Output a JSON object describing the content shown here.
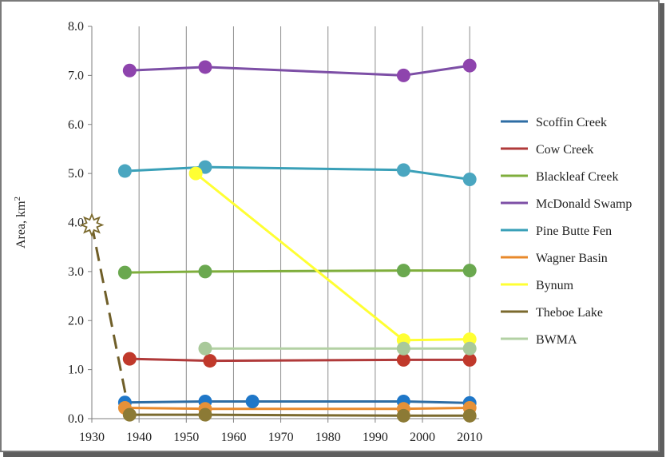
{
  "chart_data": {
    "type": "line",
    "ylabel": "Area, km",
    "ylabel_superscript": "2",
    "xlim": [
      1930,
      2012
    ],
    "ylim": [
      0,
      8
    ],
    "x_ticks": [
      1930,
      1940,
      1950,
      1960,
      1970,
      1980,
      1990,
      2000,
      2010
    ],
    "y_ticks": [
      "0.0",
      "1.0",
      "2.0",
      "3.0",
      "4.0",
      "5.0",
      "6.0",
      "7.0",
      "8.0"
    ],
    "grid": "vertical",
    "legend_position": "right",
    "series": [
      {
        "name": "Scoffin Creek",
        "color": "#2e6da4",
        "marker_color": "#1f77c8",
        "points": [
          [
            1937,
            0.33
          ],
          [
            1954,
            0.35
          ],
          [
            1964,
            0.35
          ],
          [
            1996,
            0.35
          ],
          [
            2010,
            0.32
          ]
        ]
      },
      {
        "name": "Cow Creek",
        "color": "#b03a3a",
        "marker_color": "#c0392b",
        "points": [
          [
            1938,
            1.22
          ],
          [
            1955,
            1.18
          ],
          [
            1996,
            1.2
          ],
          [
            2010,
            1.2
          ]
        ]
      },
      {
        "name": "Blackleaf Creek",
        "color": "#7fae3c",
        "marker_color": "#6aa84f",
        "points": [
          [
            1937,
            2.98
          ],
          [
            1954,
            3.0
          ],
          [
            1996,
            3.02
          ],
          [
            2010,
            3.02
          ]
        ]
      },
      {
        "name": "McDonald Swamp",
        "color": "#7d4fa6",
        "marker_color": "#8e44ad",
        "points": [
          [
            1938,
            7.1
          ],
          [
            1954,
            7.17
          ],
          [
            1996,
            7.0
          ],
          [
            2010,
            7.2
          ]
        ]
      },
      {
        "name": "Pine Butte Fen",
        "color": "#3aa0b8",
        "marker_color": "#4aa6c0",
        "points": [
          [
            1937,
            5.05
          ],
          [
            1954,
            5.13
          ],
          [
            1996,
            5.07
          ],
          [
            2010,
            4.88
          ]
        ]
      },
      {
        "name": "Wagner Basin",
        "color": "#e8892b",
        "marker_color": "#e69138",
        "points": [
          [
            1937,
            0.22
          ],
          [
            1954,
            0.2
          ],
          [
            1996,
            0.2
          ],
          [
            2010,
            0.22
          ]
        ]
      },
      {
        "name": "Bynum",
        "color": "#ffff33",
        "marker_color": "#ffff33",
        "points": [
          [
            1952,
            5.0
          ],
          [
            1996,
            1.6
          ],
          [
            2010,
            1.62
          ]
        ]
      },
      {
        "name": "Theboe Lake",
        "color": "#7b6a2e",
        "marker_color": "#8c7a35",
        "points": [
          [
            1938,
            0.08
          ],
          [
            1954,
            0.08
          ],
          [
            1996,
            0.06
          ],
          [
            2010,
            0.06
          ]
        ]
      },
      {
        "name": "BWMA",
        "color": "#b3d1a4",
        "marker_color": "#a9c99a",
        "points": [
          [
            1954,
            1.43
          ],
          [
            1996,
            1.43
          ],
          [
            2010,
            1.43
          ]
        ]
      }
    ],
    "annotations": [
      {
        "kind": "star-marker",
        "x": 1930,
        "y": 3.95,
        "color": "#7b6a2e"
      },
      {
        "kind": "dashed-line",
        "from": [
          1930,
          3.95
        ],
        "to": [
          1938,
          0.08
        ],
        "color": "#6f5e28"
      }
    ]
  }
}
